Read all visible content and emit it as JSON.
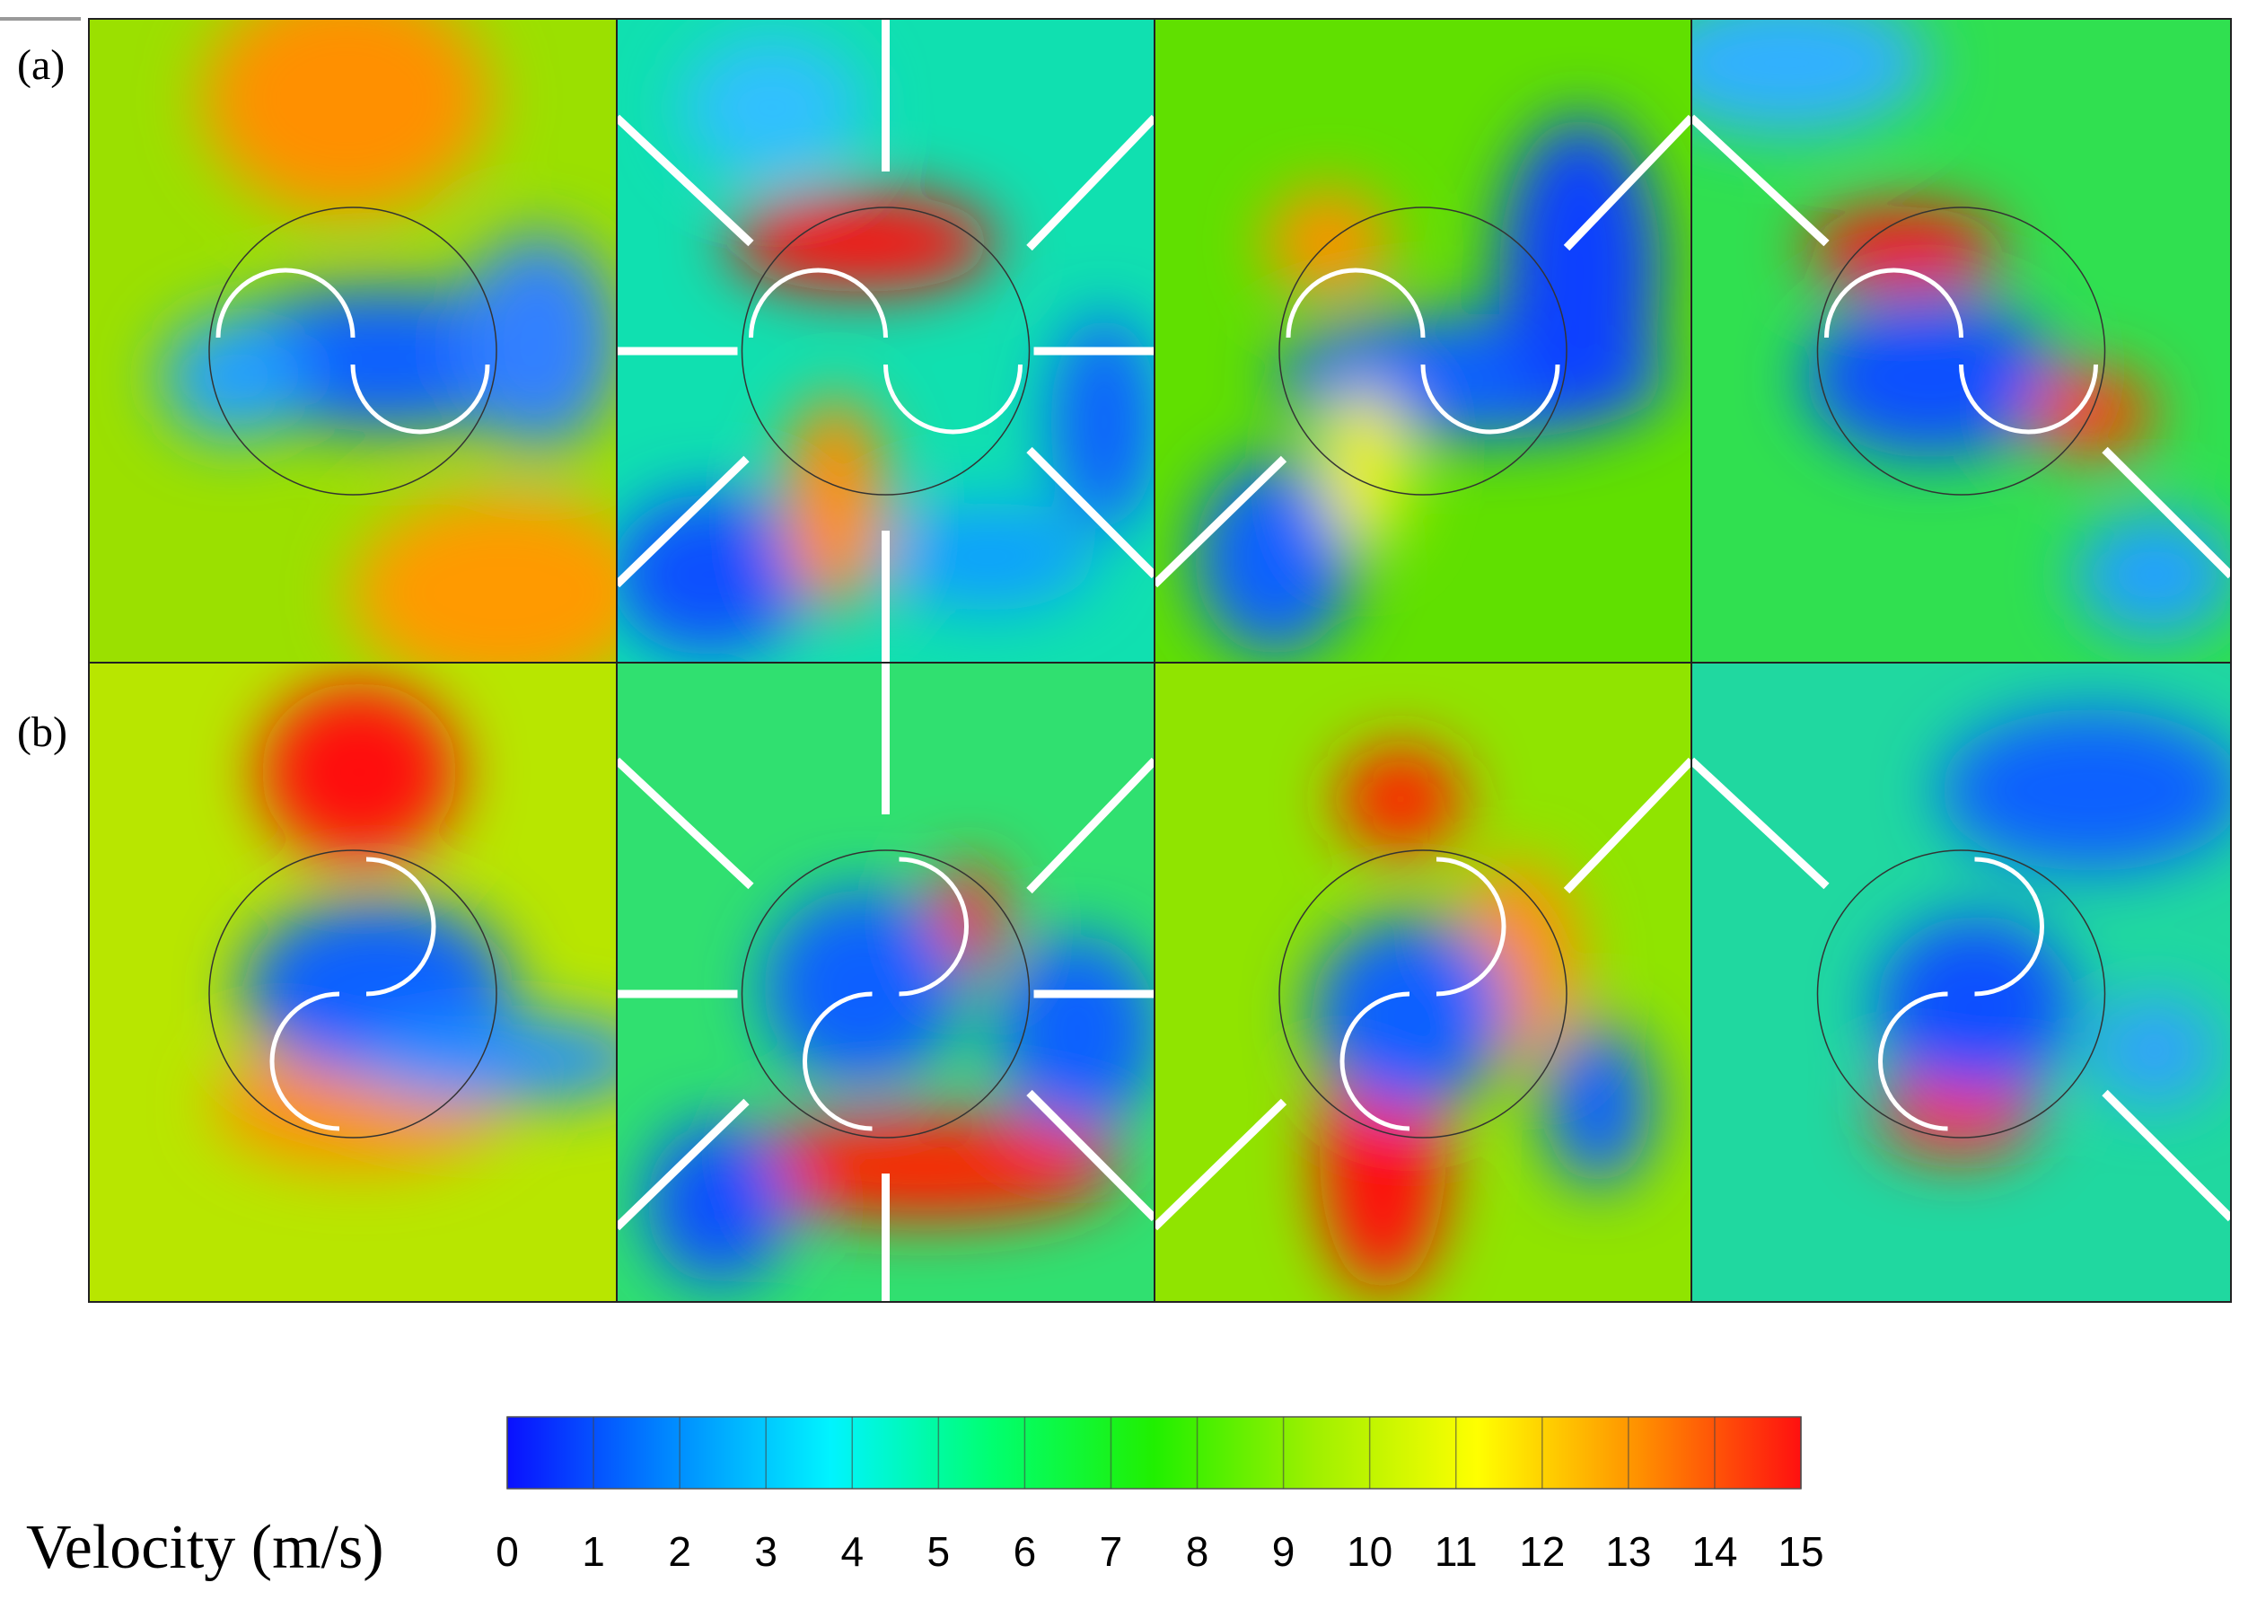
{
  "figure": {
    "panel_labels": [
      "(a)",
      "(b)"
    ],
    "colorbar": {
      "label": "Velocity (m/s)",
      "lim": [
        0,
        15
      ],
      "ticks": [
        0,
        1,
        2,
        3,
        4,
        5,
        6,
        7,
        8,
        9,
        10,
        11,
        12,
        13,
        14,
        15
      ],
      "colors": [
        "#0a10ff",
        "#0088ff",
        "#00f4ff",
        "#00ff70",
        "#20f000",
        "#a0f000",
        "#ffff00",
        "#ff9000",
        "#ff1010"
      ]
    }
  }
}
